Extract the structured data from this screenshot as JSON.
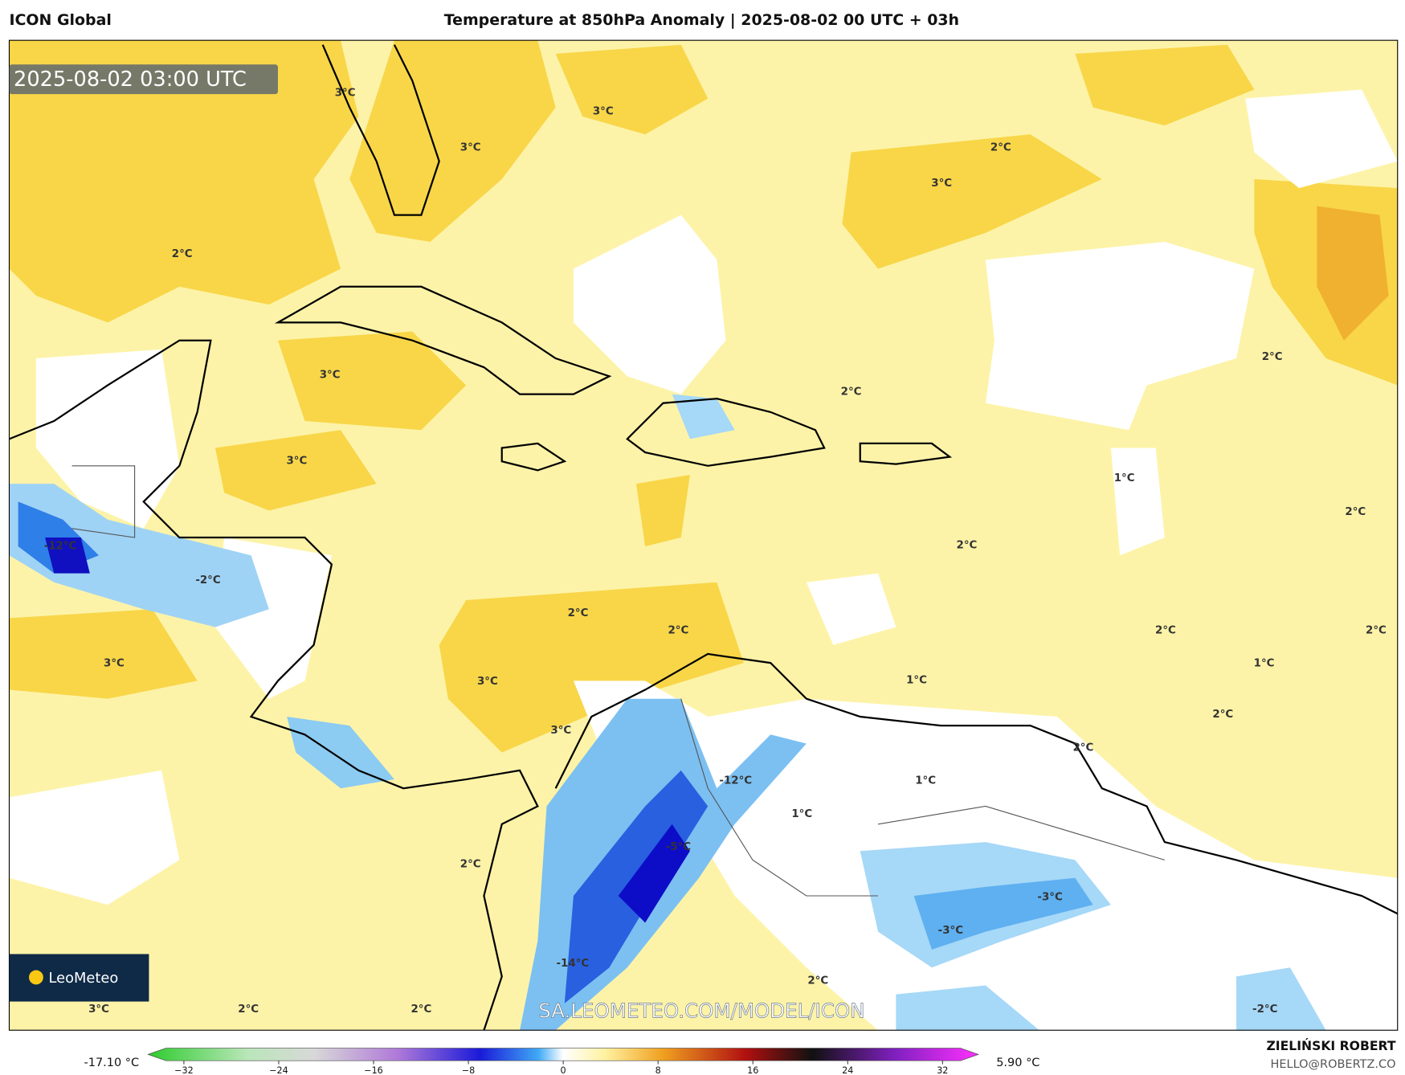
{
  "header": {
    "model": "ICON Global",
    "title": "Temperature at 850hPa Anomaly | 2025-08-02 00 UTC + 03h"
  },
  "map": {
    "timestamp": "2025-08-02 03:00 UTC",
    "watermark": "SA.LEOMETEO.COM/MODEL/ICON",
    "contour_labels": [
      "3°C",
      "3°C",
      "3°C",
      "2°C",
      "3°C",
      "2°C",
      "3°C",
      "2°C",
      "2°C",
      "3°C",
      "1°C",
      "2°C",
      "-12°C",
      "2°C",
      "-2°C",
      "2°C",
      "2°C",
      "2°C",
      "2°C",
      "3°C",
      "3°C",
      "1°C",
      "1°C",
      "2°C",
      "3°C",
      "2°C",
      "-12°C",
      "1°C",
      "1°C",
      "-5°C",
      "2°C",
      "-3°C",
      "-3°C",
      "-14°C",
      "2°C",
      "3°C",
      "2°C",
      "2°C",
      "-2°C"
    ]
  },
  "logo": {
    "text": "LeoMeteo"
  },
  "colorbar": {
    "min_label": "-17.10 °C",
    "max_label": "5.90 °C",
    "ticks": [
      "−32",
      "−24",
      "−16",
      "−8",
      "0",
      "8",
      "16",
      "24",
      "32"
    ]
  },
  "author": {
    "name": "ZIELIŃSKI ROBERT",
    "email": "HELLO@ROBERTZ.CO"
  }
}
